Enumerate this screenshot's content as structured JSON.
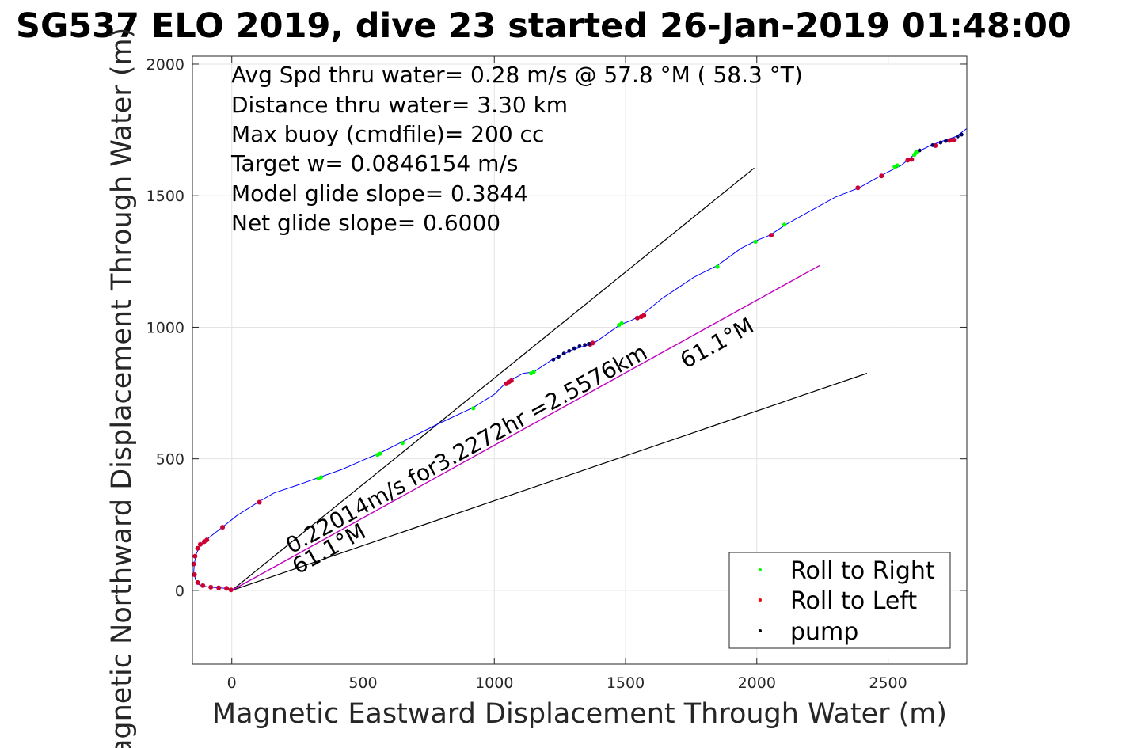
{
  "chart_data": {
    "type": "line",
    "title": "SG537 ELO 2019, dive 23 started 26-Jan-2019 01:48:00",
    "xlabel": "Magnetic Eastward Displacement Through Water (m)",
    "ylabel": "Magnetic Northward Displacement Through Water (m)",
    "xlim": [
      -150,
      2800
    ],
    "ylim": [
      -280,
      2030
    ],
    "xticks": [
      0,
      500,
      1000,
      1500,
      2000,
      2500
    ],
    "yticks": [
      0,
      500,
      1000,
      1500,
      2000
    ],
    "grid": true,
    "stats": [
      "Avg Spd thru water=  0.28 m/s @  57.8 °M ( 58.3 °T)",
      "Distance thru water=  3.30 km",
      "Max buoy (cmdfile)= 200 cc",
      "Target w= 0.0846154 m/s",
      "Model glide slope= 0.3844",
      "Net glide slope= 0.6000"
    ],
    "annotations": {
      "speed_label": "0.22014m/s for3.2272hr =2.5576km",
      "heading_label_start": "61.1°M",
      "heading_label_end": "61.1°M"
    },
    "legend": {
      "position": "bottom-right",
      "entries": [
        {
          "label": "Roll to Right",
          "color": "#00ff00"
        },
        {
          "label": "Roll to Left",
          "color": "#ff0000"
        },
        {
          "label": "pump",
          "color": "#000000"
        }
      ]
    },
    "colors": {
      "track": "#0000ff",
      "heading_line": "#bf00bf",
      "guide_lines": "#000000",
      "roll_right": "#00ff00",
      "roll_left": "#cc0033",
      "pump": "#000066"
    },
    "track": {
      "x": [
        0,
        -10,
        -25,
        -50,
        -80,
        -105,
        -125,
        -138,
        -145,
        -143,
        -135,
        -120,
        -100,
        -75,
        -30,
        20,
        100,
        160,
        250,
        335,
        420,
        500,
        560,
        640,
        780,
        920,
        1000,
        1045,
        1065,
        1110,
        1150,
        1225,
        1300,
        1380,
        1430,
        1480,
        1520,
        1560,
        1640,
        1760,
        1850,
        1940,
        2000,
        2050,
        2110,
        2200,
        2300,
        2390,
        2480,
        2550,
        2580,
        2610,
        2660,
        2700,
        2760,
        2800
      ],
      "y": [
        0,
        5,
        8,
        10,
        12,
        15,
        22,
        40,
        70,
        100,
        140,
        170,
        190,
        210,
        245,
        285,
        335,
        370,
        400,
        430,
        460,
        495,
        520,
        560,
        630,
        695,
        745,
        790,
        800,
        825,
        830,
        880,
        915,
        940,
        975,
        1010,
        1025,
        1045,
        1110,
        1190,
        1235,
        1300,
        1330,
        1350,
        1390,
        1440,
        1495,
        1530,
        1580,
        1615,
        1640,
        1665,
        1690,
        1705,
        1725,
        1755
      ]
    },
    "heading_line": {
      "x": [
        0,
        2240
      ],
      "y": [
        0,
        1235
      ]
    },
    "guide_lines": [
      {
        "x": [
          0,
          1990
        ],
        "y": [
          0,
          1605
        ]
      },
      {
        "x": [
          0,
          2420
        ],
        "y": [
          0,
          825
        ]
      }
    ],
    "roll_right_points": {
      "x": [
        330,
        340,
        555,
        565,
        650,
        920,
        1140,
        1150,
        1475,
        1485,
        1850,
        1995,
        2105,
        2525,
        2535,
        2600,
        2605,
        2610
      ],
      "y": [
        425,
        430,
        515,
        520,
        560,
        692,
        825,
        830,
        1008,
        1015,
        1230,
        1325,
        1390,
        1610,
        1615,
        1655,
        1662,
        1668
      ]
    },
    "roll_left_points": {
      "x": [
        -3,
        -20,
        -50,
        -80,
        -110,
        -130,
        -142,
        -145,
        -140,
        -130,
        -120,
        -105,
        -95,
        -35,
        105,
        1045,
        1055,
        1065,
        1365,
        1375,
        1545,
        1560,
        1570,
        2055,
        2385,
        2475,
        2575,
        2590,
        2680,
        2735,
        2750
      ],
      "y": [
        2,
        8,
        10,
        12,
        18,
        30,
        60,
        100,
        130,
        160,
        175,
        185,
        192,
        240,
        335,
        785,
        792,
        797,
        935,
        940,
        1035,
        1040,
        1045,
        1350,
        1530,
        1575,
        1635,
        1638,
        1690,
        1710,
        1712
      ]
    },
    "pump_points": {
      "x": [
        1225,
        1245,
        1265,
        1285,
        1305,
        1325,
        1345,
        1360,
        2620,
        2670,
        2700,
        2720,
        2765,
        2780
      ],
      "y": [
        877,
        888,
        900,
        910,
        920,
        928,
        933,
        937,
        1672,
        1692,
        1702,
        1708,
        1725,
        1732
      ]
    }
  }
}
